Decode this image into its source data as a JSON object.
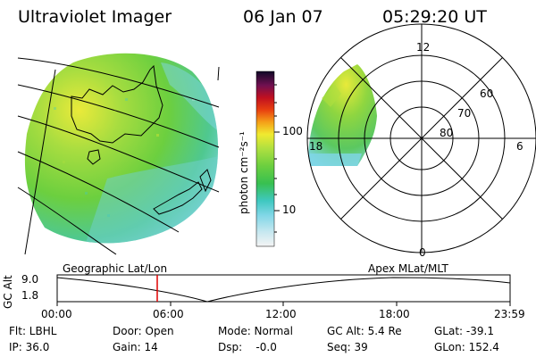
{
  "header": {
    "title": "Ultraviolet Imager",
    "date": "06 Jan 07",
    "time": "05:29:20 UT"
  },
  "colorbar": {
    "unit_label": "photon cm⁻²s⁻¹",
    "ticks": [
      "100",
      "10"
    ]
  },
  "polar": {
    "mlt_labels": [
      "12",
      "18",
      "6",
      "0"
    ],
    "lat_labels": [
      "60",
      "70",
      "80"
    ]
  },
  "panel_labels": {
    "geographic": "Geographic Lat/Lon",
    "apex": "Apex MLat/MLT"
  },
  "altitude_plot": {
    "axis_label": "GC Alt",
    "y_top": "9.0",
    "y_bottom": "1.8",
    "x_ticks": [
      "00:00",
      "06:00",
      "12:00",
      "18:00",
      "23:59"
    ],
    "cursor_time": "05:29"
  },
  "info": {
    "filter": "Flt: LBHL",
    "ip": "IP: 36.0",
    "door": "Door: Open",
    "gain": "Gain: 14",
    "mode": "Mode: Normal",
    "dsp": "Dsp:    -0.0",
    "gc_alt": "GC Alt: 5.4 Re",
    "seq": "Seq: 39",
    "glat": "GLat: -39.1",
    "glon": "GLon: 152.4"
  },
  "colors": {
    "dominant_green": "#6ccf3f",
    "cyan": "#7fd6e6",
    "yellow": "#e8ea3a",
    "cursor_red": "#e00000"
  }
}
